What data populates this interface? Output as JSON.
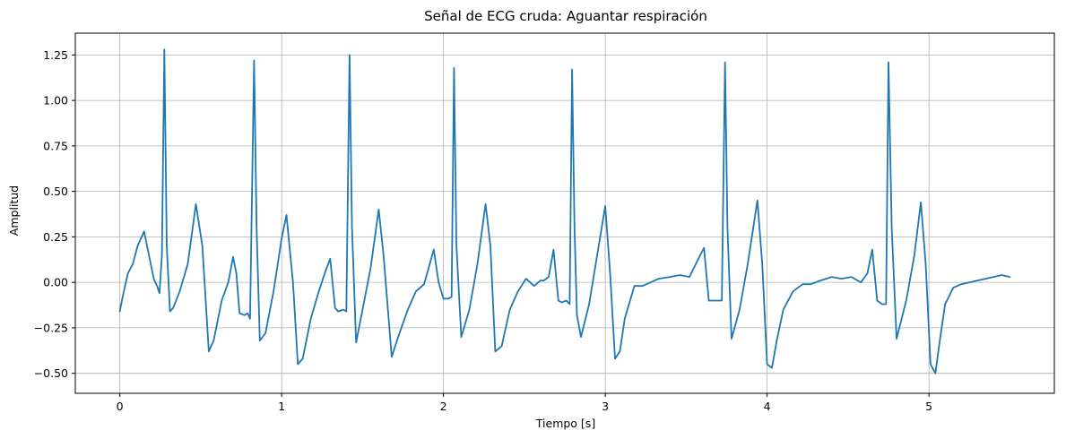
{
  "chart_data": {
    "type": "line",
    "title": "Señal de ECG cruda: Aguantar respiración",
    "xlabel": "Tiempo [s]",
    "ylabel": "Amplitud",
    "xlim": [
      -0.275,
      5.775
    ],
    "ylim": [
      -0.61,
      1.37
    ],
    "xticks": [
      0,
      1,
      2,
      3,
      4,
      5
    ],
    "xtick_labels": [
      "0",
      "1",
      "2",
      "3",
      "4",
      "5"
    ],
    "yticks": [
      -0.5,
      -0.25,
      0.0,
      0.25,
      0.5,
      0.75,
      1.0,
      1.25
    ],
    "ytick_labels": [
      "−0.50",
      "−0.25",
      "0.00",
      "0.25",
      "0.50",
      "0.75",
      "1.00",
      "1.25"
    ],
    "grid": true,
    "legend": "none",
    "color": "#1f77b4",
    "series": [
      {
        "x": [
          0.0,
          0.02,
          0.05,
          0.08,
          0.11,
          0.15,
          0.18,
          0.21,
          0.23,
          0.245,
          0.26,
          0.275,
          0.29,
          0.31,
          0.33,
          0.37,
          0.42,
          0.47,
          0.51,
          0.55,
          0.58,
          0.63,
          0.67,
          0.7,
          0.72,
          0.74,
          0.77,
          0.79,
          0.805,
          0.83,
          0.845,
          0.865,
          0.9,
          0.95,
          1.0,
          1.03,
          1.07,
          1.1,
          1.13,
          1.18,
          1.23,
          1.27,
          1.3,
          1.33,
          1.35,
          1.38,
          1.4,
          1.42,
          1.435,
          1.46,
          1.5,
          1.55,
          1.6,
          1.63,
          1.68,
          1.72,
          1.78,
          1.83,
          1.88,
          1.94,
          1.97,
          2.0,
          2.03,
          2.05,
          2.065,
          2.08,
          2.11,
          2.16,
          2.21,
          2.26,
          2.29,
          2.32,
          2.36,
          2.41,
          2.46,
          2.51,
          2.56,
          2.6,
          2.62,
          2.65,
          2.68,
          2.71,
          2.73,
          2.76,
          2.78,
          2.795,
          2.81,
          2.825,
          2.85,
          2.9,
          2.95,
          3.0,
          3.03,
          3.06,
          3.09,
          3.12,
          3.18,
          3.23,
          3.28,
          3.33,
          3.4,
          3.46,
          3.52,
          3.57,
          3.61,
          3.64,
          3.67,
          3.7,
          3.72,
          3.74,
          3.755,
          3.78,
          3.83,
          3.88,
          3.94,
          3.97,
          4.0,
          4.03,
          4.06,
          4.1,
          4.16,
          4.22,
          4.27,
          4.33,
          4.4,
          4.46,
          4.52,
          4.58,
          4.62,
          4.65,
          4.68,
          4.71,
          4.735,
          4.75,
          4.77,
          4.8,
          4.86,
          4.91,
          4.95,
          4.98,
          5.01,
          5.04,
          5.07,
          5.1,
          5.15,
          5.2,
          5.25,
          5.3,
          5.35,
          5.4,
          5.45,
          5.5
        ],
        "y": [
          -0.16,
          -0.07,
          0.05,
          0.1,
          0.2,
          0.28,
          0.15,
          0.02,
          -0.02,
          -0.06,
          0.15,
          1.28,
          0.2,
          -0.16,
          -0.14,
          -0.05,
          0.1,
          0.43,
          0.2,
          -0.38,
          -0.32,
          -0.1,
          0.0,
          0.14,
          0.05,
          -0.17,
          -0.18,
          -0.17,
          -0.2,
          1.22,
          0.3,
          -0.32,
          -0.28,
          -0.05,
          0.24,
          0.37,
          0.0,
          -0.45,
          -0.42,
          -0.2,
          -0.05,
          0.06,
          0.13,
          -0.14,
          -0.16,
          -0.15,
          -0.16,
          1.25,
          0.3,
          -0.33,
          -0.15,
          0.08,
          0.4,
          0.15,
          -0.41,
          -0.3,
          -0.15,
          -0.05,
          -0.01,
          0.18,
          0.0,
          -0.09,
          -0.09,
          -0.08,
          1.18,
          0.2,
          -0.3,
          -0.15,
          0.1,
          0.43,
          0.2,
          -0.38,
          -0.35,
          -0.15,
          -0.05,
          0.02,
          -0.02,
          0.01,
          0.01,
          0.03,
          0.18,
          -0.1,
          -0.11,
          -0.1,
          -0.12,
          1.17,
          0.3,
          -0.18,
          -0.3,
          -0.12,
          0.15,
          0.42,
          0.05,
          -0.42,
          -0.38,
          -0.2,
          -0.02,
          -0.02,
          0.0,
          0.02,
          0.03,
          0.04,
          0.03,
          0.12,
          0.19,
          -0.1,
          -0.1,
          -0.1,
          -0.1,
          1.21,
          0.3,
          -0.31,
          -0.15,
          0.1,
          0.45,
          0.1,
          -0.45,
          -0.47,
          -0.32,
          -0.15,
          -0.05,
          -0.01,
          -0.01,
          0.01,
          0.03,
          0.02,
          0.03,
          0.0,
          0.05,
          0.18,
          -0.1,
          -0.12,
          -0.12,
          1.21,
          0.3,
          -0.31,
          -0.1,
          0.15,
          0.44,
          0.1,
          -0.45,
          -0.5,
          -0.3,
          -0.12,
          -0.03,
          -0.01,
          0.0,
          0.01,
          0.02,
          0.03,
          0.04,
          0.03
        ]
      }
    ]
  }
}
